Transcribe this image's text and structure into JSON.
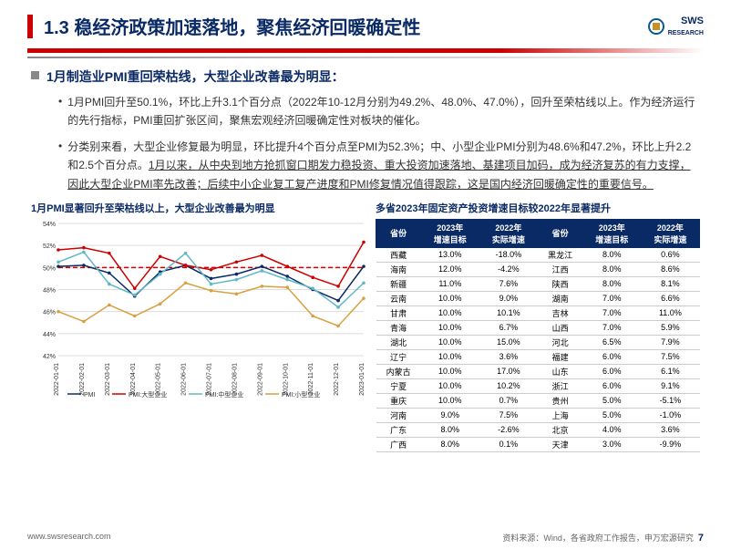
{
  "header": {
    "title": "1.3 稳经济政策加速落地，聚焦经济回暖确定性",
    "logo_text": "SWS",
    "logo_sub": "RESEARCH"
  },
  "bullet": {
    "main": "1月制造业PMI重回荣枯线，大型企业改善最为明显："
  },
  "para1": "1月PMI回升至50.1%，环比上升3.1个百分点（2022年10-12月分别为49.2%、48.0%、47.0%），回升至荣枯线以上。作为经济运行的先行指标，PMI重回扩张区间，聚焦宏观经济回暖确定性对板块的催化。",
  "para2a": "分类别来看，大型企业修复最为明显，环比提升4个百分点至PMI为52.3%；中、小型企业PMI分别为48.6%和47.2%，环比上升2.2和2.5个百分点。",
  "para2b": "1月以来，从中央到地方抢抓窗口期发力稳投资、重大投资加速落地、基建项目加码，成为经济复苏的有力支撑，因此大型企业PMI率先改善；后续中小企业复工复产进度和PMI修复情况值得跟踪，这是国内经济回暖确定性的重要信号。",
  "chart": {
    "title": "1月PMI显著回升至荣枯线以上，大型企业改善最为明显",
    "type": "line",
    "ylim": [
      42,
      54
    ],
    "ytick_step": 2,
    "categories": [
      "2022-01-01",
      "2022-02-01",
      "2022-03-01",
      "2022-04-01",
      "2022-05-01",
      "2022-06-01",
      "2022-07-01",
      "2022-08-01",
      "2022-09-01",
      "2022-10-01",
      "2022-11-01",
      "2022-12-01",
      "2023-01-01"
    ],
    "series": [
      {
        "name": "PMI",
        "color": "#0a2a66",
        "values": [
          50.1,
          50.2,
          49.5,
          47.4,
          49.6,
          50.2,
          49.0,
          49.4,
          50.1,
          49.2,
          48.0,
          47.0,
          50.1
        ]
      },
      {
        "name": "PMI:大型企业",
        "color": "#cc0000",
        "values": [
          51.6,
          51.8,
          51.3,
          48.1,
          51.0,
          50.2,
          49.8,
          50.5,
          51.1,
          50.1,
          49.1,
          48.3,
          52.3
        ]
      },
      {
        "name": "PMI:中型企业",
        "color": "#5fb8c8",
        "values": [
          50.5,
          51.4,
          48.5,
          47.5,
          49.4,
          51.3,
          48.5,
          48.9,
          49.7,
          48.9,
          48.1,
          46.4,
          48.6
        ]
      },
      {
        "name": "PMI:小型企业",
        "color": "#d9a040",
        "values": [
          46.0,
          45.1,
          46.6,
          45.6,
          46.7,
          48.6,
          47.9,
          47.6,
          48.3,
          48.2,
          45.6,
          44.7,
          47.2
        ]
      }
    ],
    "ref_line": {
      "value": 50,
      "color": "#cc0000",
      "dash": "5,3"
    },
    "background": "#ffffff",
    "grid_color": "#dcdcdc",
    "axis_label_fontsize": 7
  },
  "table": {
    "title": "多省2023年固定资产投资增速目标较2022年显著提升",
    "columns": [
      "省份",
      "2023年\n增速目标",
      "2022年\n实际增速",
      "省份",
      "2023年\n增速目标",
      "2022年\n实际增速"
    ],
    "rows": [
      [
        "西藏",
        "13.0%",
        "-18.0%",
        "黑龙江",
        "8.0%",
        "0.6%"
      ],
      [
        "海南",
        "12.0%",
        "-4.2%",
        "江西",
        "8.0%",
        "8.6%"
      ],
      [
        "新疆",
        "11.0%",
        "7.6%",
        "陕西",
        "8.0%",
        "8.1%"
      ],
      [
        "云南",
        "10.0%",
        "9.0%",
        "湖南",
        "7.0%",
        "6.6%"
      ],
      [
        "甘肃",
        "10.0%",
        "10.1%",
        "吉林",
        "7.0%",
        "11.0%"
      ],
      [
        "青海",
        "10.0%",
        "6.7%",
        "山西",
        "7.0%",
        "5.9%"
      ],
      [
        "湖北",
        "10.0%",
        "15.0%",
        "河北",
        "6.5%",
        "7.9%"
      ],
      [
        "辽宁",
        "10.0%",
        "3.6%",
        "福建",
        "6.0%",
        "7.5%"
      ],
      [
        "内蒙古",
        "10.0%",
        "17.0%",
        "山东",
        "6.0%",
        "6.1%"
      ],
      [
        "宁夏",
        "10.0%",
        "10.2%",
        "浙江",
        "6.0%",
        "9.1%"
      ],
      [
        "重庆",
        "10.0%",
        "0.7%",
        "贵州",
        "5.0%",
        "-5.1%"
      ],
      [
        "河南",
        "9.0%",
        "7.5%",
        "上海",
        "5.0%",
        "-1.0%"
      ],
      [
        "广东",
        "8.0%",
        "-2.6%",
        "北京",
        "4.0%",
        "3.6%"
      ],
      [
        "广西",
        "8.0%",
        "0.1%",
        "天津",
        "3.0%",
        "-9.9%"
      ]
    ]
  },
  "footer": {
    "url": "www.swsresearch.com",
    "source": "资料来源：Wind，各省政府工作报告，申万宏源研究",
    "page": "7"
  }
}
